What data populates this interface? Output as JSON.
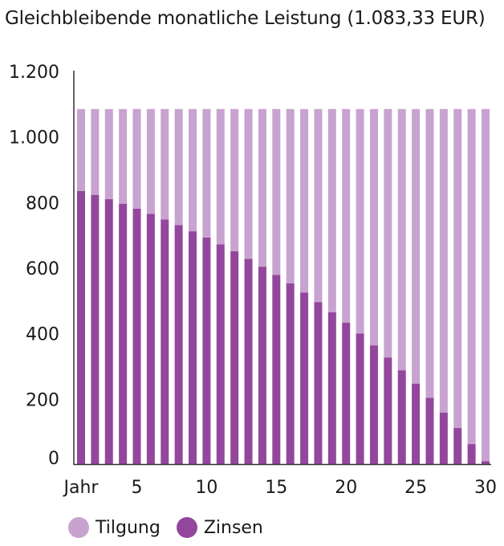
{
  "title": "Gleichbleibende monatliche Leistung (1.083,33 EUR)",
  "colors": {
    "tilgung": "#c8a3cf",
    "zinsen": "#93479c",
    "axis": "#333333"
  },
  "legend": {
    "tilgung_label": "Tilgung",
    "zinsen_label": "Zinsen"
  },
  "chart_data": {
    "type": "bar",
    "stacked": true,
    "title": "Gleichbleibende monatliche Leistung (1.083,33 EUR)",
    "xlabel": "",
    "ylabel": "",
    "ylim": [
      0,
      1200
    ],
    "yticks": [
      0,
      200,
      400,
      600,
      800,
      1000,
      1200
    ],
    "ytick_labels": [
      "0",
      "200",
      "400",
      "600",
      "800",
      "1.000",
      "1.200"
    ],
    "xtick_labels": [
      {
        "year": 1,
        "label": "Jahr"
      },
      {
        "year": 5,
        "label": "5"
      },
      {
        "year": 10,
        "label": "10"
      },
      {
        "year": 15,
        "label": "15"
      },
      {
        "year": 20,
        "label": "20"
      },
      {
        "year": 25,
        "label": "25"
      },
      {
        "year": 30,
        "label": "30"
      }
    ],
    "grid": false,
    "legend_position": "bottom-left",
    "categories": [
      1,
      2,
      3,
      4,
      5,
      6,
      7,
      8,
      9,
      10,
      11,
      12,
      13,
      14,
      15,
      16,
      17,
      18,
      19,
      20,
      21,
      22,
      23,
      24,
      25,
      26,
      27,
      28,
      29,
      30
    ],
    "series": [
      {
        "name": "Zinsen",
        "color": "#93479c",
        "values": [
          833,
          821,
          808,
          794,
          779,
          763,
          746,
          729,
          710,
          691,
          670,
          649,
          626,
          602,
          577,
          551,
          523,
          494,
          463,
          431,
          398,
          362,
          325,
          286,
          245,
          202,
          157,
          110,
          61,
          9
        ]
      },
      {
        "name": "Tilgung",
        "color": "#c8a3cf",
        "values": [
          250,
          262,
          275,
          289,
          304,
          320,
          337,
          354,
          373,
          392,
          413,
          434,
          457,
          481,
          506,
          532,
          560,
          589,
          620,
          652,
          685,
          721,
          758,
          797,
          838,
          881,
          926,
          973,
          1022,
          1074
        ]
      }
    ]
  }
}
